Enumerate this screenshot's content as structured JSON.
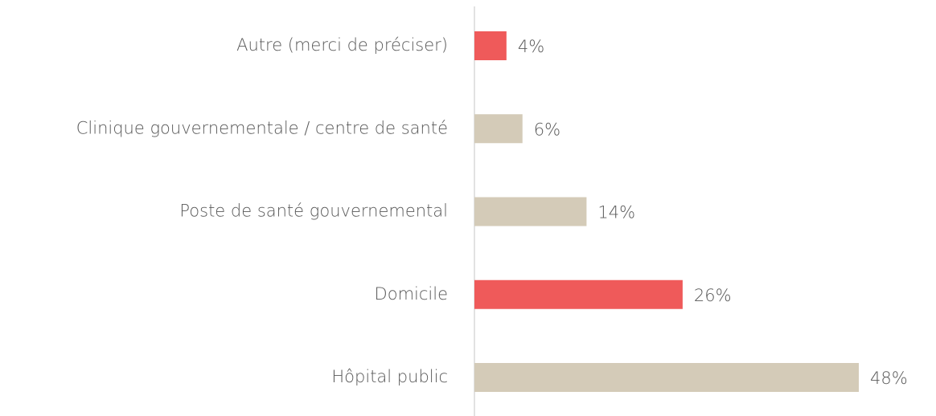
{
  "chart_data": {
    "type": "bar",
    "orientation": "horizontal",
    "categories": [
      "Autre (merci de préciser)",
      "Clinique gouvernementale / centre de santé",
      "Poste de santé gouvernemental",
      "Domicile",
      "Hôpital public"
    ],
    "values": [
      4,
      6,
      14,
      26,
      48
    ],
    "value_labels": [
      "4%",
      "6%",
      "14%",
      "26%",
      "48%"
    ],
    "colors": [
      "#ef5a5a",
      "#d4cbb8",
      "#d4cbb8",
      "#ef5a5a",
      "#d4cbb8"
    ]
  }
}
